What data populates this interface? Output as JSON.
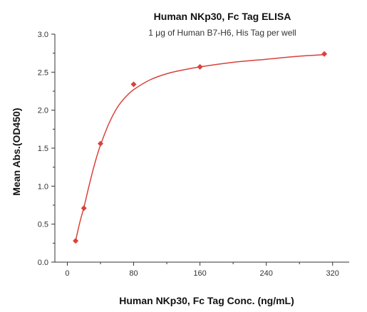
{
  "chart_data": {
    "type": "scatter",
    "title": "Human NKp30, Fc Tag ELISA",
    "subtitle": "1 μg of Human B7-H6, His Tag per well",
    "xlabel": "Human NKp30, Fc Tag Conc. (ng/mL)",
    "ylabel": "Mean Abs.(OD450)",
    "xlim": [
      -15,
      340
    ],
    "ylim": [
      0,
      3.0
    ],
    "x_ticks": [
      "0",
      "80",
      "160",
      "240",
      "320"
    ],
    "y_ticks": [
      "0.0",
      "0.5",
      "1.0",
      "1.5",
      "2.0",
      "2.5",
      "3.0"
    ],
    "grid": false,
    "colors": {
      "series": "#d9413a"
    },
    "series": [
      {
        "points": [
          {
            "x": 10,
            "y": 0.28
          },
          {
            "x": 20,
            "y": 0.71
          },
          {
            "x": 40,
            "y": 1.56
          },
          {
            "x": 80,
            "y": 2.34
          },
          {
            "x": 160,
            "y": 2.57
          },
          {
            "x": 310,
            "y": 2.74
          }
        ],
        "fit_curve": [
          {
            "x": 10,
            "y": 0.28
          },
          {
            "x": 15,
            "y": 0.52
          },
          {
            "x": 20,
            "y": 0.72
          },
          {
            "x": 25,
            "y": 0.95
          },
          {
            "x": 30,
            "y": 1.17
          },
          {
            "x": 35,
            "y": 1.37
          },
          {
            "x": 40,
            "y": 1.54
          },
          {
            "x": 50,
            "y": 1.82
          },
          {
            "x": 60,
            "y": 2.03
          },
          {
            "x": 70,
            "y": 2.17
          },
          {
            "x": 80,
            "y": 2.27
          },
          {
            "x": 100,
            "y": 2.4
          },
          {
            "x": 120,
            "y": 2.48
          },
          {
            "x": 140,
            "y": 2.53
          },
          {
            "x": 160,
            "y": 2.57
          },
          {
            "x": 200,
            "y": 2.63
          },
          {
            "x": 240,
            "y": 2.67
          },
          {
            "x": 280,
            "y": 2.71
          },
          {
            "x": 310,
            "y": 2.73
          }
        ]
      }
    ]
  }
}
